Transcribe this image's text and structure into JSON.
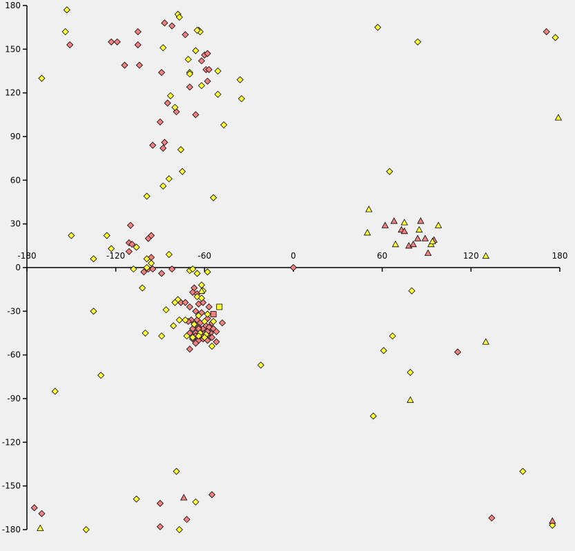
{
  "chart_data": {
    "type": "scatter",
    "title": "",
    "xlabel": "",
    "ylabel": "",
    "xlim": [
      -180,
      180
    ],
    "ylim": [
      -180,
      180
    ],
    "x_ticks": [
      -180,
      -120,
      -60,
      0,
      60,
      120,
      180
    ],
    "y_ticks": [
      -180,
      -150,
      -120,
      -90,
      -60,
      -30,
      0,
      30,
      60,
      90,
      120,
      150,
      180
    ],
    "x_tick_labels": [
      "-180",
      "-120",
      "-60",
      "0",
      "60",
      "120",
      "180"
    ],
    "y_tick_labels": [
      "-180",
      "-150",
      "-120",
      "-90",
      "-60",
      "-30",
      "0",
      "30",
      "60",
      "90",
      "120",
      "150",
      "180"
    ],
    "grid": false,
    "colors": {
      "background": "#f0f0f0",
      "axis": "#000000",
      "pink": "#f08080",
      "yellow": "#ffff33",
      "marker_edge": "#000000"
    },
    "series": [
      {
        "marker": "diamond",
        "color": "#f08080",
        "points": [
          [
            -151,
            153
          ],
          [
            -123,
            155
          ],
          [
            -119,
            155
          ],
          [
            -114,
            139
          ],
          [
            -105,
            162
          ],
          [
            -105,
            153
          ],
          [
            -104,
            139
          ],
          [
            -89,
            134
          ],
          [
            -87,
            168
          ],
          [
            -82,
            166
          ],
          [
            -73,
            160
          ],
          [
            -64,
            163
          ],
          [
            -62,
            142
          ],
          [
            -60,
            146
          ],
          [
            -58,
            147
          ],
          [
            -59,
            136
          ],
          [
            -57,
            136
          ],
          [
            -58,
            128
          ],
          [
            -70,
            124
          ],
          [
            -66,
            105
          ],
          [
            -79,
            107
          ],
          [
            -85,
            113
          ],
          [
            -90,
            100
          ],
          [
            -87,
            86
          ],
          [
            -88,
            82
          ],
          [
            -95,
            84
          ],
          [
            -110,
            29
          ],
          [
            -111,
            17
          ],
          [
            -109,
            16
          ],
          [
            -111,
            11
          ],
          [
            -98,
            20
          ],
          [
            -96,
            22
          ],
          [
            -96,
            7
          ],
          [
            -98,
            -1
          ],
          [
            -95,
            -1
          ],
          [
            -101,
            -3
          ],
          [
            -89,
            -4
          ],
          [
            -82,
            -1
          ],
          [
            -76,
            -24
          ],
          [
            -73,
            -24
          ],
          [
            -67,
            -14
          ],
          [
            -68,
            -17
          ],
          [
            -65,
            -18
          ],
          [
            -64,
            -25
          ],
          [
            -61,
            -24
          ],
          [
            -70,
            -27
          ],
          [
            -66,
            -30
          ],
          [
            -62,
            -31
          ],
          [
            -57,
            -27
          ],
          [
            -69,
            -36
          ],
          [
            -71,
            -37
          ],
          [
            -65,
            -36
          ],
          [
            -63,
            -38
          ],
          [
            -58,
            -35
          ],
          [
            -55,
            -38
          ],
          [
            -48,
            -38
          ],
          [
            -68,
            -42
          ],
          [
            -64,
            -41
          ],
          [
            -61,
            -42
          ],
          [
            -59,
            -40
          ],
          [
            -57,
            -41
          ],
          [
            -54,
            -42
          ],
          [
            -70,
            -45
          ],
          [
            -66,
            -45
          ],
          [
            -62,
            -46
          ],
          [
            -60,
            -45
          ],
          [
            -56,
            -45
          ],
          [
            -52,
            -44
          ],
          [
            -68,
            -49
          ],
          [
            -64,
            -50
          ],
          [
            -61,
            -49
          ],
          [
            -58,
            -50
          ],
          [
            -55,
            -48
          ],
          [
            -52,
            -51
          ],
          [
            -66,
            -52
          ],
          [
            -70,
            -56
          ],
          [
            -66,
            -47
          ],
          [
            -58,
            -46
          ],
          [
            -58,
            -44
          ],
          [
            -64,
            -42
          ],
          [
            0,
            0
          ],
          [
            111,
            -58
          ],
          [
            -175,
            -165
          ],
          [
            -170,
            -169
          ],
          [
            -90,
            -162
          ],
          [
            -90,
            -178
          ],
          [
            -72,
            -173
          ],
          [
            -55,
            -156
          ],
          [
            134,
            -172
          ],
          [
            171,
            162
          ]
        ]
      },
      {
        "marker": "diamond",
        "color": "#ffff33",
        "points": [
          [
            -153,
            177
          ],
          [
            -154,
            162
          ],
          [
            -170,
            130
          ],
          [
            -78,
            174
          ],
          [
            -77,
            172
          ],
          [
            -63,
            162
          ],
          [
            -65,
            163
          ],
          [
            -88,
            151
          ],
          [
            -66,
            149
          ],
          [
            -71,
            143
          ],
          [
            -70,
            134
          ],
          [
            -70,
            133
          ],
          [
            -51,
            135
          ],
          [
            -36,
            129
          ],
          [
            -62,
            125
          ],
          [
            -51,
            119
          ],
          [
            -83,
            118
          ],
          [
            -35,
            116
          ],
          [
            -80,
            110
          ],
          [
            -47,
            98
          ],
          [
            -76,
            81
          ],
          [
            -75,
            66
          ],
          [
            -84,
            61
          ],
          [
            -88,
            56
          ],
          [
            -99,
            49
          ],
          [
            -54,
            48
          ],
          [
            -150,
            22
          ],
          [
            -126,
            22
          ],
          [
            -123,
            13
          ],
          [
            -135,
            6
          ],
          [
            -106,
            14
          ],
          [
            -99,
            6
          ],
          [
            -96,
            3
          ],
          [
            -99,
            0
          ],
          [
            -108,
            -1
          ],
          [
            -84,
            9
          ],
          [
            -70,
            -2
          ],
          [
            -68,
            -1
          ],
          [
            -65,
            -4
          ],
          [
            -58,
            -3
          ],
          [
            -102,
            -14
          ],
          [
            -62,
            -12
          ],
          [
            -61,
            -16
          ],
          [
            -65,
            -20
          ],
          [
            -62,
            -21
          ],
          [
            -78,
            -22
          ],
          [
            -80,
            -24
          ],
          [
            -86,
            -29
          ],
          [
            -77,
            -36
          ],
          [
            -73,
            -36
          ],
          [
            -81,
            -40
          ],
          [
            -64,
            -33
          ],
          [
            -58,
            -32
          ],
          [
            -60,
            -37
          ],
          [
            -54,
            -37
          ],
          [
            -67,
            -39
          ],
          [
            -63,
            -45
          ],
          [
            -59,
            -46
          ],
          [
            -72,
            -47
          ],
          [
            -68,
            -48
          ],
          [
            -64,
            -47
          ],
          [
            -60,
            -48
          ],
          [
            -55,
            -54
          ],
          [
            -89,
            -47
          ],
          [
            -100,
            -45
          ],
          [
            -135,
            -30
          ],
          [
            -130,
            -74
          ],
          [
            -161,
            -85
          ],
          [
            -22,
            -67
          ],
          [
            80,
            -16
          ],
          [
            67,
            -47
          ],
          [
            61,
            -57
          ],
          [
            79,
            -72
          ],
          [
            54,
            -102
          ],
          [
            57,
            165
          ],
          [
            84,
            155
          ],
          [
            65,
            66
          ],
          [
            155,
            -140
          ],
          [
            175,
            -177
          ],
          [
            177,
            158
          ],
          [
            -140,
            -180
          ],
          [
            -106,
            -159
          ],
          [
            -79,
            -140
          ],
          [
            -66,
            -161
          ],
          [
            -77,
            -180
          ]
        ]
      },
      {
        "marker": "triangle",
        "color": "#f08080",
        "points": [
          [
            62,
            29
          ],
          [
            68,
            32
          ],
          [
            73,
            26
          ],
          [
            75,
            25
          ],
          [
            78,
            15
          ],
          [
            81,
            16
          ],
          [
            84,
            20
          ],
          [
            86,
            32
          ],
          [
            89,
            20
          ],
          [
            91,
            10
          ],
          [
            95,
            19
          ],
          [
            -74,
            -158
          ],
          [
            175,
            -174
          ]
        ]
      },
      {
        "marker": "triangle",
        "color": "#ffff33",
        "points": [
          [
            51,
            40
          ],
          [
            50,
            24
          ],
          [
            69,
            16
          ],
          [
            75,
            31
          ],
          [
            85,
            26
          ],
          [
            93,
            16
          ],
          [
            94,
            18
          ],
          [
            98,
            29
          ],
          [
            130,
            8
          ],
          [
            130,
            -51
          ],
          [
            79,
            -91
          ],
          [
            -62,
            -16
          ],
          [
            -171,
            -179
          ],
          [
            179,
            103
          ]
        ]
      },
      {
        "marker": "square",
        "color": "#ffff33",
        "points": [
          [
            -50,
            -27
          ]
        ]
      },
      {
        "marker": "square",
        "color": "#f08080",
        "points": [
          [
            -54,
            -32
          ]
        ]
      }
    ]
  }
}
